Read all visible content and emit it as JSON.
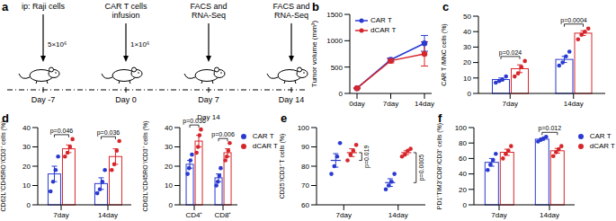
{
  "diagram": {
    "panel": "a",
    "steps": [
      {
        "lines": [
          "ip: Raji cells"
        ],
        "dose": "5×10⁶",
        "day": "Day -7"
      },
      {
        "lines": [
          "CAR T cells",
          "infusion"
        ],
        "dose": "1×10⁶",
        "day": "Day 0"
      },
      {
        "lines": [
          "FACS and",
          "RNA-Seq"
        ],
        "day": "Day 7"
      },
      {
        "lines": [
          "FACS and",
          "RNA-Seq"
        ],
        "day": "Day 14"
      }
    ]
  },
  "chart_data": [
    {
      "panel": "b",
      "type": "line",
      "y_label": "Tumor volume (mm³)",
      "categories": [
        "0day",
        "7day",
        "14day"
      ],
      "series": [
        {
          "name": "CAR T",
          "color": "#2a3ad1",
          "marker": "circle",
          "values": [
            100,
            640,
            950
          ],
          "errors": [
            10,
            30,
            150
          ]
        },
        {
          "name": "dCAR T",
          "color": "#d7262b",
          "marker": "circle",
          "values": [
            100,
            620,
            750
          ],
          "errors": [
            10,
            40,
            230
          ]
        }
      ],
      "ylim": [
        0,
        1500
      ],
      "yticks": [
        0,
        500,
        1000,
        1500
      ],
      "legend": "upper left"
    },
    {
      "panel": "c",
      "type": "bar",
      "y_label": "CAR T /MNC cells (%)",
      "categories": [
        "7day",
        "14day"
      ],
      "series": [
        {
          "name": "CAR T",
          "color": "#2a3ad1",
          "values": [
            9,
            22
          ],
          "errors": [
            1,
            2
          ],
          "points": [
            [
              7,
              8,
              9,
              11
            ],
            [
              18,
              20,
              24,
              27
            ]
          ]
        },
        {
          "name": "dCAR T",
          "color": "#d7262b",
          "values": [
            16,
            39
          ],
          "errors": [
            2.5,
            1.5
          ],
          "points": [
            [
              11,
              13,
              17,
              21
            ],
            [
              35,
              38,
              40,
              42
            ]
          ]
        }
      ],
      "annotations": [
        "p=0.024",
        "p=0.0004"
      ],
      "ylim": [
        0,
        50
      ],
      "yticks": [
        0,
        10,
        20,
        30,
        40,
        50
      ]
    },
    {
      "panel": "d",
      "type": "bar",
      "y_label": "CD62L⁺CD45RO⁺/CD3⁺ cells (%)",
      "categories": [
        "7day",
        "14day"
      ],
      "series": [
        {
          "name": "CAR T",
          "color": "#2a3ad1",
          "values": [
            16,
            11
          ],
          "errors": [
            4,
            3
          ],
          "points": [
            [
              7,
              12,
              18,
              25
            ],
            [
              6,
              8,
              12,
              18
            ]
          ]
        },
        {
          "name": "dCAR T",
          "color": "#d7262b",
          "values": [
            29,
            25
          ],
          "errors": [
            2,
            4
          ],
          "points": [
            [
              25,
              27,
              30,
              34
            ],
            [
              18,
              21,
              28,
              33
            ]
          ]
        }
      ],
      "annotations": [
        "p=0.046",
        "p=0.036"
      ],
      "ylim": [
        0,
        40
      ],
      "yticks": [
        0,
        10,
        20,
        30,
        40
      ]
    },
    {
      "title": "Day 14",
      "type": "bar",
      "y_label": "CD62L⁺CD45RO⁺/CD3⁺ cells (%)",
      "categories": [
        "CD4⁺",
        "CD8⁺"
      ],
      "series": [
        {
          "name": "CAR T",
          "color": "#2a3ad1",
          "values": [
            21,
            14
          ],
          "errors": [
            2,
            2
          ],
          "points": [
            [
              16,
              19,
              23,
              26
            ],
            [
              10,
              12,
              15,
              19
            ]
          ]
        },
        {
          "name": "dCAR T",
          "color": "#d7262b",
          "values": [
            33,
            27
          ],
          "errors": [
            3,
            2
          ],
          "points": [
            [
              27,
              30,
              36,
              39
            ],
            [
              23,
              25,
              28,
              32
            ]
          ]
        }
      ],
      "annotations": [
        "p=0.036",
        "p=0.006"
      ],
      "ylim": [
        0,
        40
      ],
      "yticks": [
        0,
        10,
        20,
        30,
        40
      ],
      "legend": "right"
    },
    {
      "panel": "e",
      "type": "scatter",
      "y_label": "CD25⁺/CD3⁺ T cells (%)",
      "categories": [
        "7day",
        "14day"
      ],
      "series": [
        {
          "name": "CAR T",
          "color": "#2a3ad1",
          "values": [
            83,
            71.5
          ],
          "errors": [
            3.5,
            2
          ],
          "points": [
            [
              76,
              80,
              85,
              92
            ],
            [
              68,
              70,
              72,
              76
            ]
          ]
        },
        {
          "name": "dCAR T",
          "color": "#d7262b",
          "values": [
            87,
            87
          ],
          "errors": [
            2,
            1
          ],
          "points": [
            [
              83,
              86,
              88,
              91
            ],
            [
              85,
              86,
              88,
              89
            ]
          ]
        }
      ],
      "annotations": [
        "p=0.019",
        "p=0.0005"
      ],
      "ylim": [
        60,
        100
      ],
      "yticks": [
        60,
        70,
        80,
        90,
        100
      ]
    },
    {
      "panel": "f",
      "type": "bar",
      "y_label": "PD1⁺TIM3⁺CD8⁺/CD3⁺ cells (%)",
      "categories": [
        "7day",
        "14day"
      ],
      "series": [
        {
          "name": "CAR T",
          "color": "#2a3ad1",
          "values": [
            55,
            85
          ],
          "errors": [
            5,
            1.5
          ],
          "points": [
            [
              45,
              52,
              58,
              66
            ],
            [
              82,
              84,
              86,
              88
            ]
          ]
        },
        {
          "name": "dCAR T",
          "color": "#d7262b",
          "values": [
            68,
            70
          ],
          "errors": [
            4,
            3
          ],
          "points": [
            [
              60,
              66,
              70,
              76
            ],
            [
              63,
              68,
              72,
              76
            ]
          ]
        }
      ],
      "annotations": [
        null,
        "p=0.012"
      ],
      "ylim": [
        0,
        100
      ],
      "yticks": [
        0,
        20,
        40,
        60,
        80,
        100
      ],
      "legend": "right"
    }
  ]
}
